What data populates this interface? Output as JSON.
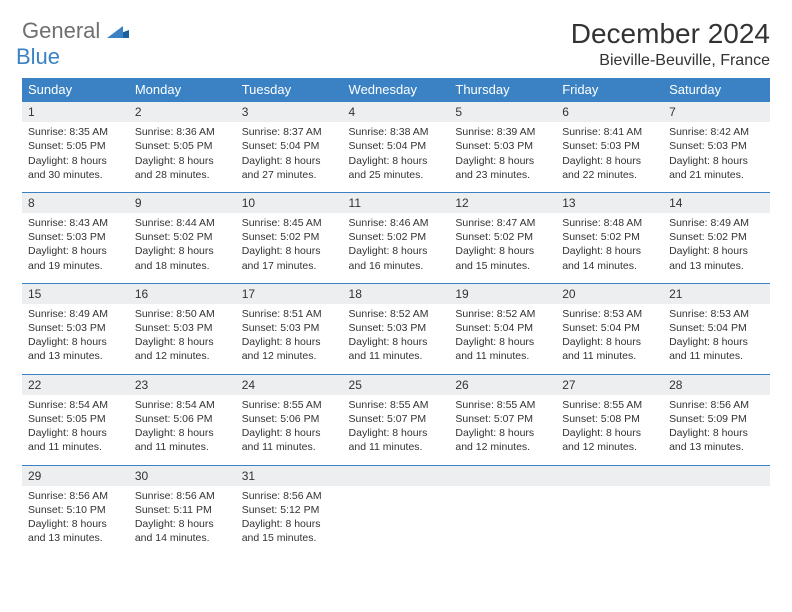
{
  "logo": {
    "word1": "General",
    "word2": "Blue"
  },
  "title": "December 2024",
  "location": "Bieville-Beuville, France",
  "colors": {
    "header_bg": "#3b82c4",
    "header_text": "#ffffff",
    "daynum_bg": "#eceef0",
    "border": "#3b82c4",
    "text": "#333333",
    "logo_gray": "#6f6f6f",
    "logo_blue": "#3b82c4"
  },
  "weekdays": [
    "Sunday",
    "Monday",
    "Tuesday",
    "Wednesday",
    "Thursday",
    "Friday",
    "Saturday"
  ],
  "days": [
    {
      "n": "1",
      "sr": "8:35 AM",
      "ss": "5:05 PM",
      "dl": "8 hours and 30 minutes."
    },
    {
      "n": "2",
      "sr": "8:36 AM",
      "ss": "5:05 PM",
      "dl": "8 hours and 28 minutes."
    },
    {
      "n": "3",
      "sr": "8:37 AM",
      "ss": "5:04 PM",
      "dl": "8 hours and 27 minutes."
    },
    {
      "n": "4",
      "sr": "8:38 AM",
      "ss": "5:04 PM",
      "dl": "8 hours and 25 minutes."
    },
    {
      "n": "5",
      "sr": "8:39 AM",
      "ss": "5:03 PM",
      "dl": "8 hours and 23 minutes."
    },
    {
      "n": "6",
      "sr": "8:41 AM",
      "ss": "5:03 PM",
      "dl": "8 hours and 22 minutes."
    },
    {
      "n": "7",
      "sr": "8:42 AM",
      "ss": "5:03 PM",
      "dl": "8 hours and 21 minutes."
    },
    {
      "n": "8",
      "sr": "8:43 AM",
      "ss": "5:03 PM",
      "dl": "8 hours and 19 minutes."
    },
    {
      "n": "9",
      "sr": "8:44 AM",
      "ss": "5:02 PM",
      "dl": "8 hours and 18 minutes."
    },
    {
      "n": "10",
      "sr": "8:45 AM",
      "ss": "5:02 PM",
      "dl": "8 hours and 17 minutes."
    },
    {
      "n": "11",
      "sr": "8:46 AM",
      "ss": "5:02 PM",
      "dl": "8 hours and 16 minutes."
    },
    {
      "n": "12",
      "sr": "8:47 AM",
      "ss": "5:02 PM",
      "dl": "8 hours and 15 minutes."
    },
    {
      "n": "13",
      "sr": "8:48 AM",
      "ss": "5:02 PM",
      "dl": "8 hours and 14 minutes."
    },
    {
      "n": "14",
      "sr": "8:49 AM",
      "ss": "5:02 PM",
      "dl": "8 hours and 13 minutes."
    },
    {
      "n": "15",
      "sr": "8:49 AM",
      "ss": "5:03 PM",
      "dl": "8 hours and 13 minutes."
    },
    {
      "n": "16",
      "sr": "8:50 AM",
      "ss": "5:03 PM",
      "dl": "8 hours and 12 minutes."
    },
    {
      "n": "17",
      "sr": "8:51 AM",
      "ss": "5:03 PM",
      "dl": "8 hours and 12 minutes."
    },
    {
      "n": "18",
      "sr": "8:52 AM",
      "ss": "5:03 PM",
      "dl": "8 hours and 11 minutes."
    },
    {
      "n": "19",
      "sr": "8:52 AM",
      "ss": "5:04 PM",
      "dl": "8 hours and 11 minutes."
    },
    {
      "n": "20",
      "sr": "8:53 AM",
      "ss": "5:04 PM",
      "dl": "8 hours and 11 minutes."
    },
    {
      "n": "21",
      "sr": "8:53 AM",
      "ss": "5:04 PM",
      "dl": "8 hours and 11 minutes."
    },
    {
      "n": "22",
      "sr": "8:54 AM",
      "ss": "5:05 PM",
      "dl": "8 hours and 11 minutes."
    },
    {
      "n": "23",
      "sr": "8:54 AM",
      "ss": "5:06 PM",
      "dl": "8 hours and 11 minutes."
    },
    {
      "n": "24",
      "sr": "8:55 AM",
      "ss": "5:06 PM",
      "dl": "8 hours and 11 minutes."
    },
    {
      "n": "25",
      "sr": "8:55 AM",
      "ss": "5:07 PM",
      "dl": "8 hours and 11 minutes."
    },
    {
      "n": "26",
      "sr": "8:55 AM",
      "ss": "5:07 PM",
      "dl": "8 hours and 12 minutes."
    },
    {
      "n": "27",
      "sr": "8:55 AM",
      "ss": "5:08 PM",
      "dl": "8 hours and 12 minutes."
    },
    {
      "n": "28",
      "sr": "8:56 AM",
      "ss": "5:09 PM",
      "dl": "8 hours and 13 minutes."
    },
    {
      "n": "29",
      "sr": "8:56 AM",
      "ss": "5:10 PM",
      "dl": "8 hours and 13 minutes."
    },
    {
      "n": "30",
      "sr": "8:56 AM",
      "ss": "5:11 PM",
      "dl": "8 hours and 14 minutes."
    },
    {
      "n": "31",
      "sr": "8:56 AM",
      "ss": "5:12 PM",
      "dl": "8 hours and 15 minutes."
    }
  ],
  "labels": {
    "sunrise": "Sunrise:",
    "sunset": "Sunset:",
    "daylight": "Daylight:"
  }
}
